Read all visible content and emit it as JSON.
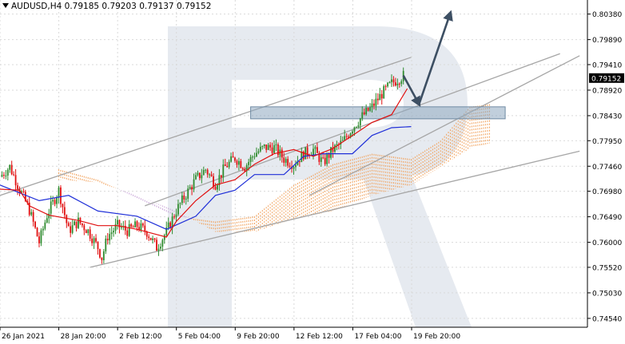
{
  "header": {
    "symbol": "AUDUSD,H4",
    "open": "0.79185",
    "high": "0.79203",
    "low": "0.79137",
    "close": "0.79152"
  },
  "colors": {
    "bull": "#2e8b2e",
    "bear": "#e01010",
    "tenkan": "#e01010",
    "kijun": "#1f2fd8",
    "cloud_bull": "#f2a35e",
    "cloud_bear": "#c9a6d8",
    "trend": "#a6a6a6",
    "arrow": "#3d4f63",
    "zone": "#8ea8bf",
    "watermark": "#e6eaf0",
    "price_label_bg": "#000000"
  },
  "chart_data": {
    "type": "candlestick",
    "title": "AUDUSD,H4",
    "current_price": "0.79152",
    "ylim": [
      0.7437,
      0.8065
    ],
    "y_ticks": [
      "0.80380",
      "0.79890",
      "0.79410",
      "0.78920",
      "0.78430",
      "0.77950",
      "0.77460",
      "0.76980",
      "0.76490",
      "0.76000",
      "0.75520",
      "0.75030",
      "0.74540"
    ],
    "x_ticks": [
      "26 Jan 2021",
      "28 Jan 20:00",
      "2 Feb 12:00",
      "5 Feb 04:00",
      "9 Feb 20:00",
      "12 Feb 12:00",
      "17 Feb 04:00",
      "19 Feb 20:00"
    ],
    "grid": true,
    "indicators": [
      "Ichimoku Kinko Hyo"
    ],
    "price_path": [
      [
        0,
        0.7726
      ],
      [
        5,
        0.7745
      ],
      [
        10,
        0.7702
      ],
      [
        15,
        0.7662
      ],
      [
        20,
        0.76
      ],
      [
        24,
        0.7652
      ],
      [
        30,
        0.77
      ],
      [
        35,
        0.7622
      ],
      [
        40,
        0.764
      ],
      [
        45,
        0.7622
      ],
      [
        50,
        0.759
      ],
      [
        52,
        0.757
      ],
      [
        55,
        0.7612
      ],
      [
        60,
        0.7632
      ],
      [
        65,
        0.7622
      ],
      [
        70,
        0.7632
      ],
      [
        75,
        0.762
      ],
      [
        80,
        0.759
      ],
      [
        85,
        0.762
      ],
      [
        90,
        0.7661
      ],
      [
        95,
        0.7692
      ],
      [
        100,
        0.7721
      ],
      [
        105,
        0.774
      ],
      [
        110,
        0.7712
      ],
      [
        115,
        0.7745
      ],
      [
        120,
        0.7762
      ],
      [
        125,
        0.7745
      ],
      [
        130,
        0.777
      ],
      [
        135,
        0.7782
      ],
      [
        140,
        0.7782
      ],
      [
        145,
        0.776
      ],
      [
        150,
        0.775
      ],
      [
        155,
        0.777
      ],
      [
        160,
        0.7778
      ],
      [
        165,
        0.7752
      ],
      [
        170,
        0.7778
      ],
      [
        175,
        0.7792
      ],
      [
        180,
        0.782
      ],
      [
        185,
        0.7842
      ],
      [
        190,
        0.786
      ],
      [
        195,
        0.7885
      ],
      [
        200,
        0.7905
      ],
      [
        204,
        0.7915
      ],
      [
        206,
        0.792
      ]
    ],
    "tenkan_sen": [
      [
        0,
        0.7702
      ],
      [
        10,
        0.77
      ],
      [
        15,
        0.767
      ],
      [
        25,
        0.7652
      ],
      [
        40,
        0.7642
      ],
      [
        50,
        0.7632
      ],
      [
        60,
        0.7632
      ],
      [
        70,
        0.7625
      ],
      [
        85,
        0.761
      ],
      [
        90,
        0.764
      ],
      [
        100,
        0.768
      ],
      [
        110,
        0.771
      ],
      [
        120,
        0.772
      ],
      [
        130,
        0.775
      ],
      [
        140,
        0.777
      ],
      [
        150,
        0.7778
      ],
      [
        160,
        0.7765
      ],
      [
        170,
        0.778
      ],
      [
        180,
        0.7805
      ],
      [
        190,
        0.783
      ],
      [
        200,
        0.7845
      ],
      [
        208,
        0.7895
      ]
    ],
    "kijun_sen": [
      [
        0,
        0.771
      ],
      [
        20,
        0.768
      ],
      [
        35,
        0.769
      ],
      [
        50,
        0.766
      ],
      [
        70,
        0.765
      ],
      [
        85,
        0.7625
      ],
      [
        100,
        0.765
      ],
      [
        110,
        0.769
      ],
      [
        120,
        0.77
      ],
      [
        130,
        0.773
      ],
      [
        145,
        0.773
      ],
      [
        155,
        0.7765
      ],
      [
        165,
        0.777
      ],
      [
        180,
        0.777
      ],
      [
        190,
        0.7805
      ],
      [
        200,
        0.782
      ],
      [
        210,
        0.7822
      ]
    ],
    "cloud_span_a": [
      [
        30,
        0.774
      ],
      [
        50,
        0.772
      ],
      [
        70,
        0.7685
      ],
      [
        90,
        0.765
      ],
      [
        110,
        0.764
      ],
      [
        130,
        0.765
      ],
      [
        150,
        0.771
      ],
      [
        170,
        0.775
      ],
      [
        190,
        0.777
      ],
      [
        210,
        0.776
      ],
      [
        225,
        0.7795
      ],
      [
        240,
        0.786
      ],
      [
        250,
        0.7865
      ]
    ],
    "cloud_span_b": [
      [
        30,
        0.772
      ],
      [
        50,
        0.7715
      ],
      [
        70,
        0.769
      ],
      [
        90,
        0.766
      ],
      [
        110,
        0.762
      ],
      [
        130,
        0.762
      ],
      [
        150,
        0.7645
      ],
      [
        170,
        0.766
      ],
      [
        190,
        0.769
      ],
      [
        210,
        0.771
      ],
      [
        225,
        0.7745
      ],
      [
        240,
        0.778
      ],
      [
        250,
        0.779
      ]
    ],
    "trend_lines": [
      {
        "x1": 0,
        "y1": 0.769,
        "x2": 210,
        "y2": 0.7955
      },
      {
        "x1": 46,
        "y1": 0.7552,
        "x2": 296,
        "y2": 0.7775
      },
      {
        "x1": 74,
        "y1": 0.767,
        "x2": 286,
        "y2": 0.7962
      },
      {
        "x1": 158,
        "y1": 0.769,
        "x2": 296,
        "y2": 0.7958
      }
    ],
    "resistance_zone": [
      0.7837,
      0.786
    ],
    "forecast_arrows": [
      {
        "from": [
          206,
          0.792
        ],
        "to": [
          214,
          0.7865
        ]
      },
      {
        "from": [
          214,
          0.7865
        ],
        "to": [
          230,
          0.804
        ]
      }
    ],
    "watermark": "R"
  }
}
